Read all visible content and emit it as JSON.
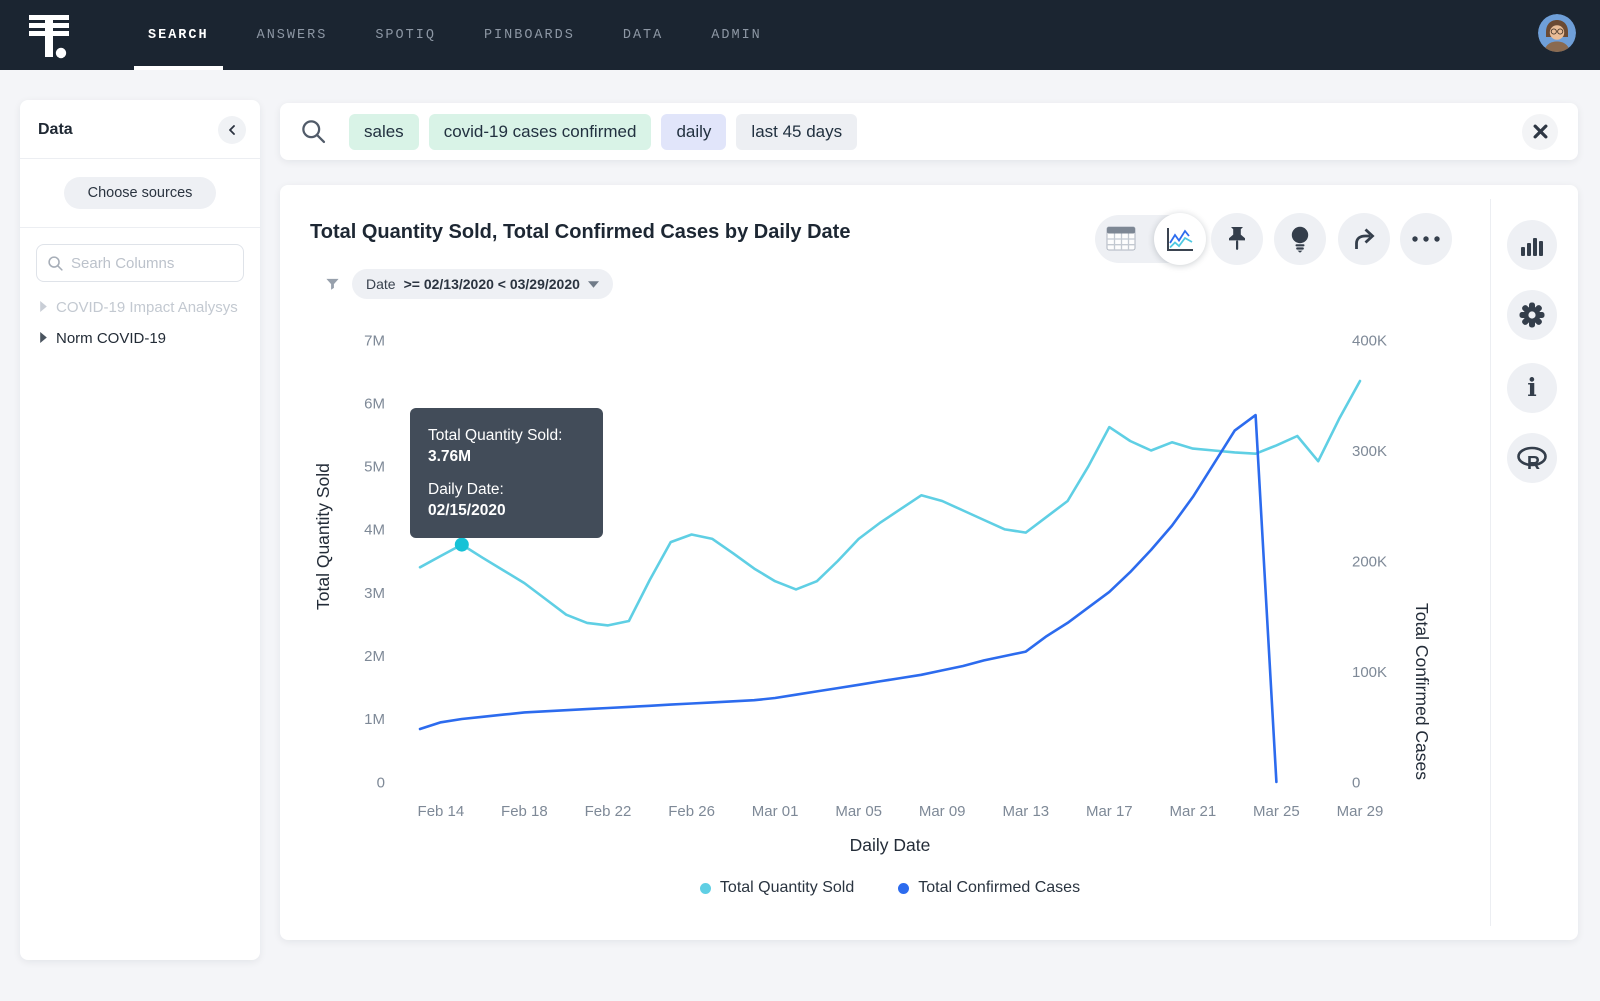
{
  "nav": {
    "items": [
      {
        "label": "SEARCH",
        "active": true
      },
      {
        "label": "ANSWERS",
        "active": false
      },
      {
        "label": "SPOTIQ",
        "active": false
      },
      {
        "label": "PINBOARDS",
        "active": false
      },
      {
        "label": "DATA",
        "active": false
      },
      {
        "label": "ADMIN",
        "active": false
      }
    ]
  },
  "sidebar": {
    "title": "Data",
    "choose_sources_label": "Choose sources",
    "search_placeholder": "Searh Columns",
    "sources": [
      {
        "label": "COVID-19 Impact Analysys",
        "muted": true
      },
      {
        "label": "Norm COVID-19",
        "muted": false
      }
    ]
  },
  "search_bar": {
    "tokens": [
      {
        "label": "sales",
        "type": "green"
      },
      {
        "label": "covid-19 cases confirmed",
        "type": "green"
      },
      {
        "label": "daily",
        "type": "purple"
      },
      {
        "label": "last 45 days",
        "type": "gray"
      }
    ]
  },
  "answer": {
    "title": "Total Quantity Sold, Total Confirmed Cases by Daily Date",
    "filter_prefix": "Date",
    "filter_condition": ">= 02/13/2020 < 03/29/2020"
  },
  "tooltip": {
    "label1": "Total Quantity Sold:",
    "value1": "3.76M",
    "label2": "Daily Date:",
    "value2": "02/15/2020"
  },
  "colors": {
    "nav_bg": "#1b2531",
    "page_bg": "#f4f5f8",
    "token_green": "#d9f3e7",
    "token_purple": "#e1e5fa",
    "token_gray": "#edeff3",
    "tooltip_bg": "#424c59",
    "accent_cyan": "#5fcfe4",
    "accent_blue": "#2c6bee"
  },
  "chart_data": {
    "type": "line",
    "title": "Total Quantity Sold, Total Confirmed Cases by Daily Date",
    "xlabel": "Daily Date",
    "ylabel_left": "Total Quantity Sold",
    "ylabel_right": "Total Confirmed Cases",
    "grid": "off",
    "legend_position": "bottom",
    "left_ticks": [
      "7M",
      "6M",
      "5M",
      "4M",
      "3M",
      "2M",
      "1M",
      "0"
    ],
    "right_ticks": [
      "400K",
      "300K",
      "200K",
      "100K",
      "0"
    ],
    "left_axis_max_millions": 7,
    "right_axis_max_thousands": 400,
    "x_tick_labels": [
      "Feb 14",
      "Feb 18",
      "Feb 22",
      "Feb 26",
      "Mar 01",
      "Mar 05",
      "Mar 09",
      "Mar 13",
      "Mar 17",
      "Mar 21",
      "Mar 25",
      "Mar 29"
    ],
    "x_dates": [
      "02/13",
      "02/14",
      "02/15",
      "02/16",
      "02/17",
      "02/18",
      "02/19",
      "02/20",
      "02/21",
      "02/22",
      "02/23",
      "02/24",
      "02/25",
      "02/26",
      "02/27",
      "02/28",
      "02/29",
      "03/01",
      "03/02",
      "03/03",
      "03/04",
      "03/05",
      "03/06",
      "03/07",
      "03/08",
      "03/09",
      "03/10",
      "03/11",
      "03/12",
      "03/13",
      "03/14",
      "03/15",
      "03/16",
      "03/17",
      "03/18",
      "03/19",
      "03/20",
      "03/21",
      "03/22",
      "03/23",
      "03/24",
      "03/25",
      "03/26",
      "03/27",
      "03/28",
      "03/29"
    ],
    "series": [
      {
        "name": "Total Quantity Sold",
        "axis": "left",
        "unit": "millions",
        "color": "#5fcfe4",
        "values": [
          3.4,
          3.58,
          3.76,
          3.55,
          3.35,
          3.15,
          2.9,
          2.65,
          2.52,
          2.48,
          2.55,
          3.2,
          3.8,
          3.92,
          3.85,
          3.62,
          3.38,
          3.18,
          3.05,
          3.18,
          3.5,
          3.85,
          4.1,
          4.32,
          4.54,
          4.45,
          4.3,
          4.15,
          4.0,
          3.95,
          4.2,
          4.45,
          5.0,
          5.62,
          5.4,
          5.25,
          5.38,
          5.28,
          5.25,
          5.22,
          5.2,
          5.33,
          5.48,
          5.08,
          5.75,
          6.35
        ]
      },
      {
        "name": "Total Confirmed Cases",
        "axis": "right",
        "unit": "thousands",
        "color": "#2c6bee",
        "values": [
          48,
          54,
          57,
          59,
          61,
          63,
          64,
          65,
          66,
          67,
          68,
          69,
          70,
          71,
          72,
          73,
          74,
          76,
          79,
          82,
          85,
          88,
          91,
          94,
          97,
          101,
          105,
          110,
          114,
          118,
          132,
          144,
          158,
          172,
          190,
          210,
          232,
          258,
          288,
          318,
          332,
          0,
          null,
          null,
          null,
          null
        ]
      }
    ],
    "highlight_point": {
      "series": "Total Quantity Sold",
      "index": 2,
      "date": "02/15/2020",
      "value_millions": 3.76,
      "color": "#16c2d6"
    }
  }
}
